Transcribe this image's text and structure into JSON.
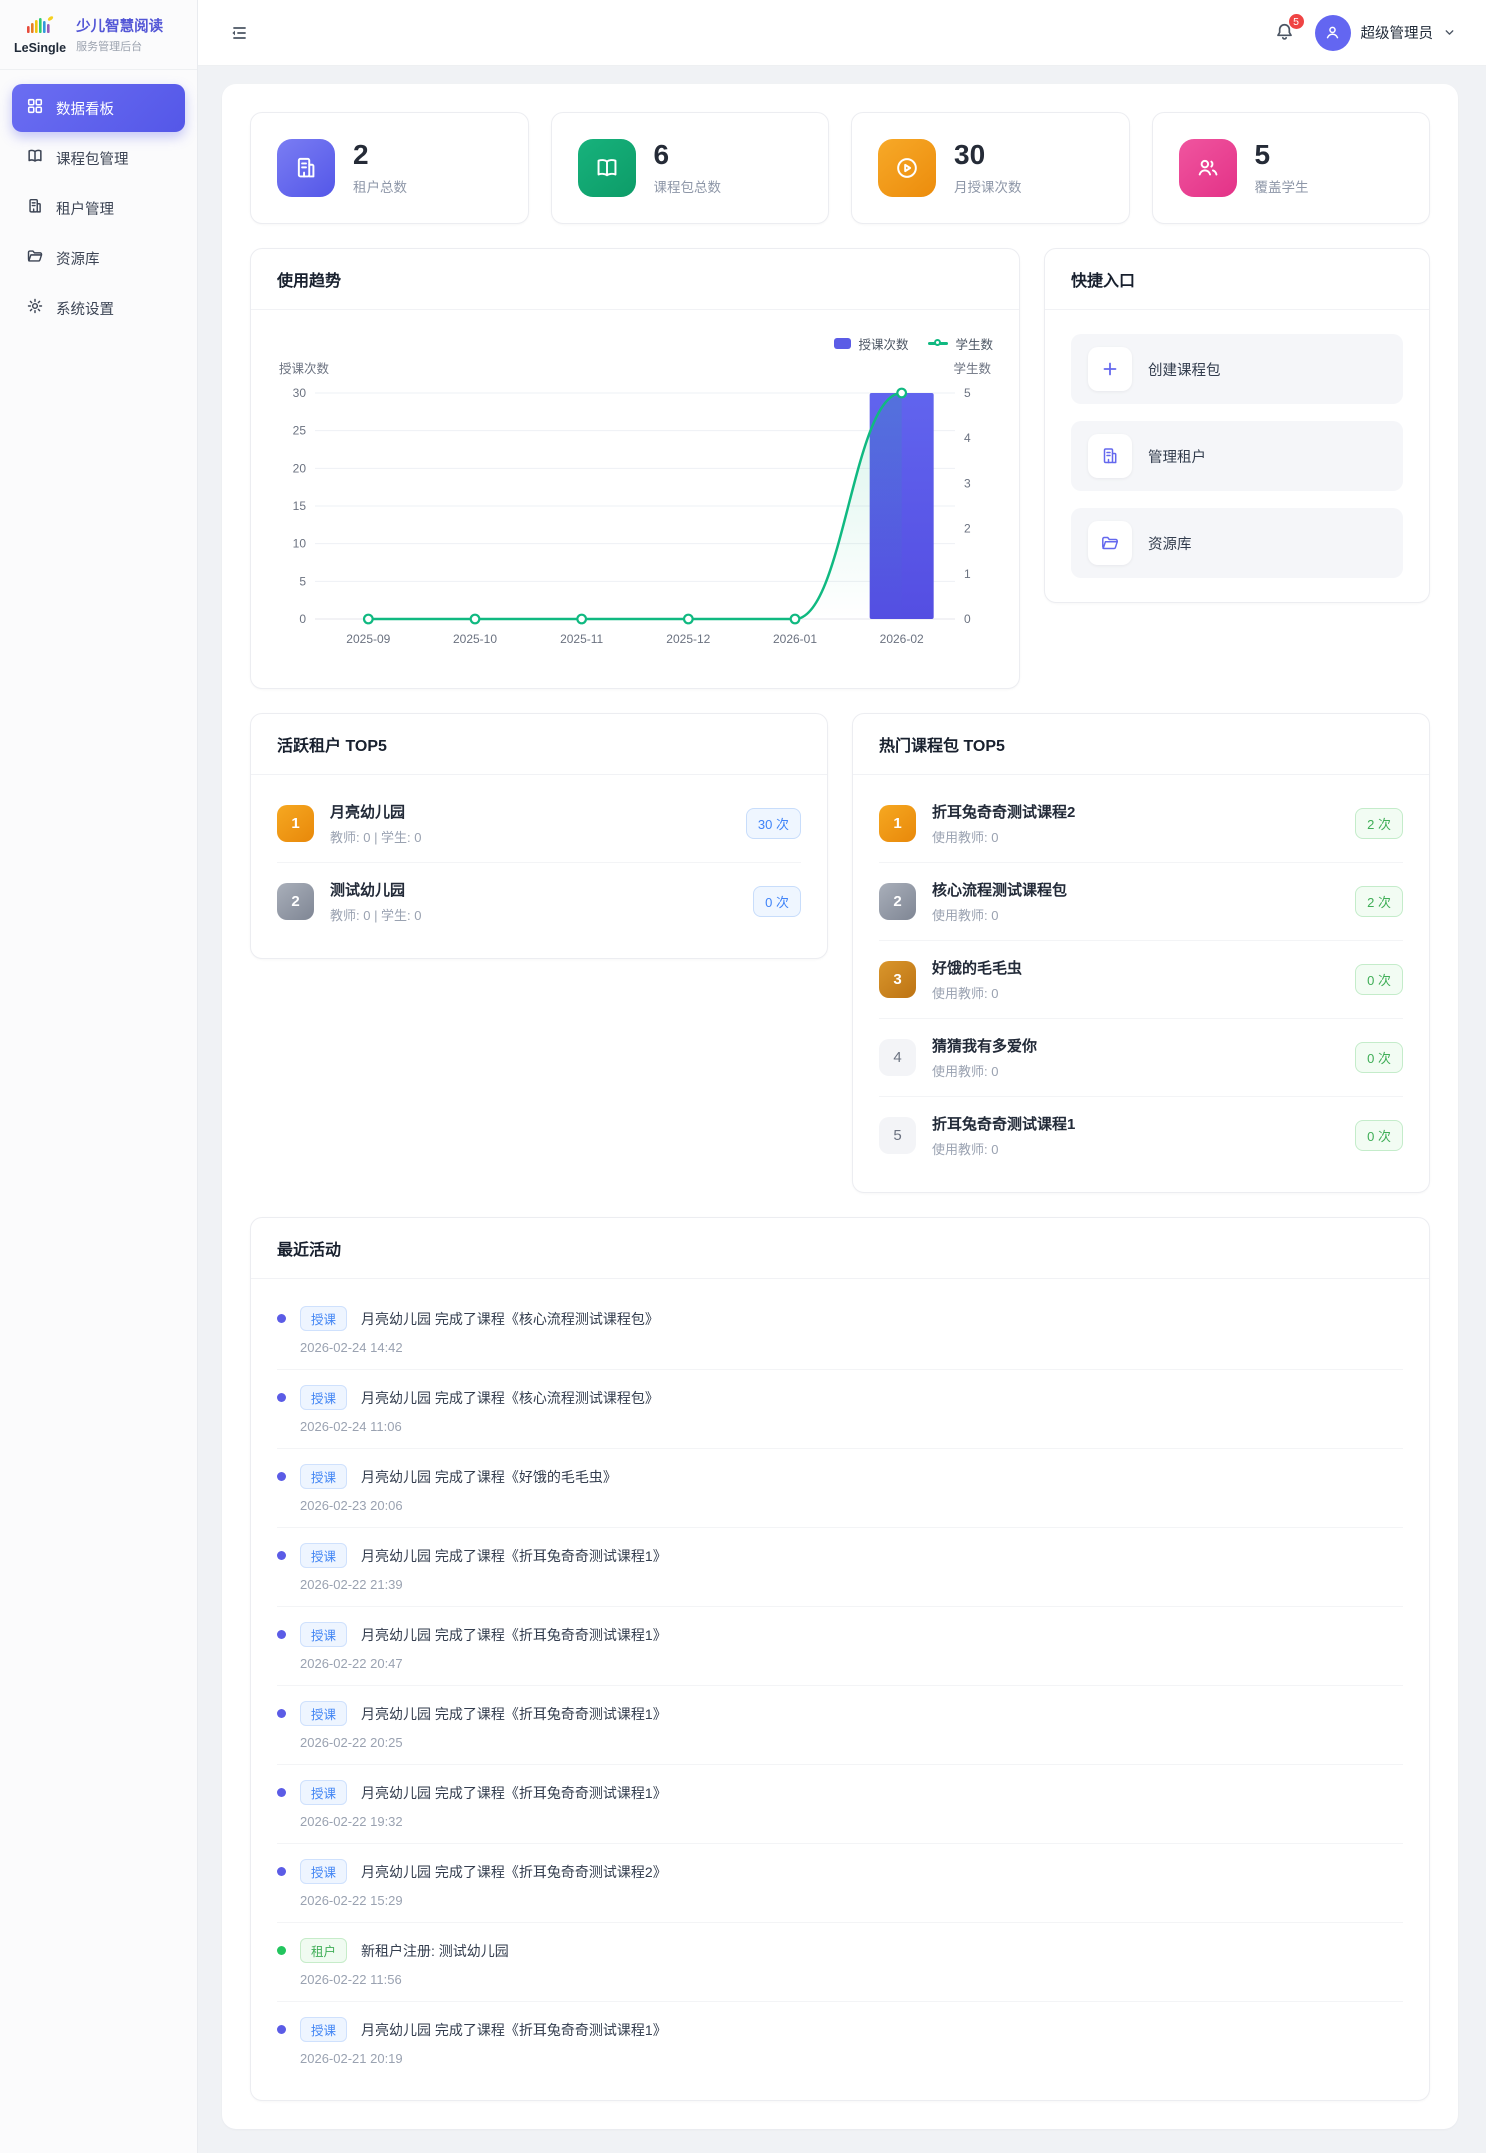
{
  "app": {
    "logo_text": "LeSingle",
    "title": "少儿智慧阅读",
    "subtitle": "服务管理后台"
  },
  "sidebar": {
    "items": [
      {
        "label": "数据看板"
      },
      {
        "label": "课程包管理"
      },
      {
        "label": "租户管理"
      },
      {
        "label": "资源库"
      },
      {
        "label": "系统设置"
      }
    ]
  },
  "header": {
    "notification_count": "5",
    "user_name": "超级管理员"
  },
  "stats": {
    "cards": [
      {
        "value": "2",
        "label": "租户总数",
        "icon": "building-icon"
      },
      {
        "value": "6",
        "label": "课程包总数",
        "icon": "book-open-icon"
      },
      {
        "value": "30",
        "label": "月授课次数",
        "icon": "play-circle-icon"
      },
      {
        "value": "5",
        "label": "覆盖学生",
        "icon": "users-icon"
      }
    ]
  },
  "trend": {
    "title": "使用趋势"
  },
  "chart_data": {
    "type": "bar",
    "categories": [
      "2025-09",
      "2025-10",
      "2025-11",
      "2025-12",
      "2026-01",
      "2026-02"
    ],
    "series": [
      {
        "name": "授课次数",
        "type": "bar",
        "axis": "left",
        "color": "#5b5ce6",
        "values": [
          0,
          0,
          0,
          0,
          0,
          30
        ]
      },
      {
        "name": "学生数",
        "type": "line",
        "axis": "right",
        "color": "#10b981",
        "values": [
          0,
          0,
          0,
          0,
          0,
          5
        ]
      }
    ],
    "left_axis": {
      "label": "授课次数",
      "min": 0,
      "max": 30,
      "step": 5
    },
    "right_axis": {
      "label": "学生数",
      "min": 0,
      "max": 5,
      "step": 1
    },
    "legend_position": "top-right",
    "grid": true
  },
  "quick": {
    "title": "快捷入口",
    "items": [
      {
        "label": "创建课程包",
        "icon": "plus-icon"
      },
      {
        "label": "管理租户",
        "icon": "building-icon"
      },
      {
        "label": "资源库",
        "icon": "folder-icon"
      }
    ]
  },
  "tenants": {
    "title": "活跃租户 TOP5",
    "items": [
      {
        "rank": "1",
        "name": "月亮幼儿园",
        "sub": "教师: 0 | 学生: 0",
        "count": "30 次"
      },
      {
        "rank": "2",
        "name": "测试幼儿园",
        "sub": "教师: 0 | 学生: 0",
        "count": "0 次"
      }
    ]
  },
  "courses": {
    "title": "热门课程包 TOP5",
    "items": [
      {
        "rank": "1",
        "name": "折耳兔奇奇测试课程2",
        "sub": "使用教师: 0",
        "count": "2 次"
      },
      {
        "rank": "2",
        "name": "核心流程测试课程包",
        "sub": "使用教师: 0",
        "count": "2 次"
      },
      {
        "rank": "3",
        "name": "好饿的毛毛虫",
        "sub": "使用教师: 0",
        "count": "0 次"
      },
      {
        "rank": "4",
        "name": "猜猜我有多爱你",
        "sub": "使用教师: 0",
        "count": "0 次"
      },
      {
        "rank": "5",
        "name": "折耳兔奇奇测试课程1",
        "sub": "使用教师: 0",
        "count": "0 次"
      }
    ]
  },
  "activity": {
    "title": "最近活动",
    "items": [
      {
        "type": "teach",
        "tag": "授课",
        "text": "月亮幼儿园 完成了课程《核心流程测试课程包》",
        "time": "2026-02-24 14:42"
      },
      {
        "type": "teach",
        "tag": "授课",
        "text": "月亮幼儿园 完成了课程《核心流程测试课程包》",
        "time": "2026-02-24 11:06"
      },
      {
        "type": "teach",
        "tag": "授课",
        "text": "月亮幼儿园 完成了课程《好饿的毛毛虫》",
        "time": "2026-02-23 20:06"
      },
      {
        "type": "teach",
        "tag": "授课",
        "text": "月亮幼儿园 完成了课程《折耳兔奇奇测试课程1》",
        "time": "2026-02-22 21:39"
      },
      {
        "type": "teach",
        "tag": "授课",
        "text": "月亮幼儿园 完成了课程《折耳兔奇奇测试课程1》",
        "time": "2026-02-22 20:47"
      },
      {
        "type": "teach",
        "tag": "授课",
        "text": "月亮幼儿园 完成了课程《折耳兔奇奇测试课程1》",
        "time": "2026-02-22 20:25"
      },
      {
        "type": "teach",
        "tag": "授课",
        "text": "月亮幼儿园 完成了课程《折耳兔奇奇测试课程1》",
        "time": "2026-02-22 19:32"
      },
      {
        "type": "teach",
        "tag": "授课",
        "text": "月亮幼儿园 完成了课程《折耳兔奇奇测试课程2》",
        "time": "2026-02-22 15:29"
      },
      {
        "type": "tenant",
        "tag": "租户",
        "text": "新租户注册: 测试幼儿园",
        "time": "2026-02-22 11:56"
      },
      {
        "type": "teach",
        "tag": "授课",
        "text": "月亮幼儿园 完成了课程《折耳兔奇奇测试课程1》",
        "time": "2026-02-21 20:19"
      }
    ]
  },
  "colors": {
    "primary": "#5b5ce6",
    "bar": "#5b5ce6",
    "line": "#10b981",
    "badge_red": "#ef4444",
    "tag_blue": "#4285f4",
    "tag_green": "#3fae57",
    "rank_gold": "#f0a01c",
    "rank_silver": "#98a0ac",
    "rank_bronze": "#c9821f"
  }
}
